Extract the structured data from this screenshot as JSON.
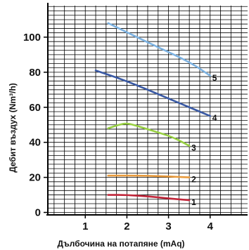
{
  "chart_data": {
    "type": "line",
    "title": "",
    "xlabel": "Дълбочина на потапяне (mAq)",
    "ylabel": "Дебит въздух (Nm³/h)",
    "xlim": [
      0.1,
      4.9
    ],
    "ylim": [
      -1,
      118
    ],
    "x_ticks": [
      "1",
      "2",
      "3",
      "4"
    ],
    "y_ticks": [
      "0",
      "20",
      "40",
      "60",
      "80",
      "100"
    ],
    "grid": true,
    "legend": "none",
    "series": [
      {
        "label": "1",
        "color": "#c0263a",
        "points": [
          [
            1.55,
            10
          ],
          [
            2.0,
            10
          ],
          [
            2.6,
            9
          ],
          [
            3.0,
            8
          ],
          [
            3.5,
            7
          ]
        ]
      },
      {
        "label": "2",
        "color": "#e89a3c",
        "points": [
          [
            1.55,
            21
          ],
          [
            2.5,
            21
          ],
          [
            3.5,
            20
          ]
        ]
      },
      {
        "label": "3",
        "color": "#98d043",
        "points": [
          [
            1.55,
            48
          ],
          [
            1.8,
            50
          ],
          [
            2.0,
            51
          ],
          [
            2.3,
            49
          ],
          [
            2.7,
            46
          ],
          [
            3.1,
            43
          ],
          [
            3.5,
            38
          ]
        ]
      },
      {
        "label": "4",
        "color": "#3a5aa5",
        "points": [
          [
            1.25,
            81
          ],
          [
            2.0,
            75
          ],
          [
            3.0,
            65
          ],
          [
            4.0,
            55
          ]
        ]
      },
      {
        "label": "5",
        "color": "#7eb3e2",
        "points": [
          [
            1.55,
            108
          ],
          [
            2.5,
            97
          ],
          [
            3.5,
            86
          ],
          [
            4.0,
            78
          ]
        ]
      }
    ]
  }
}
